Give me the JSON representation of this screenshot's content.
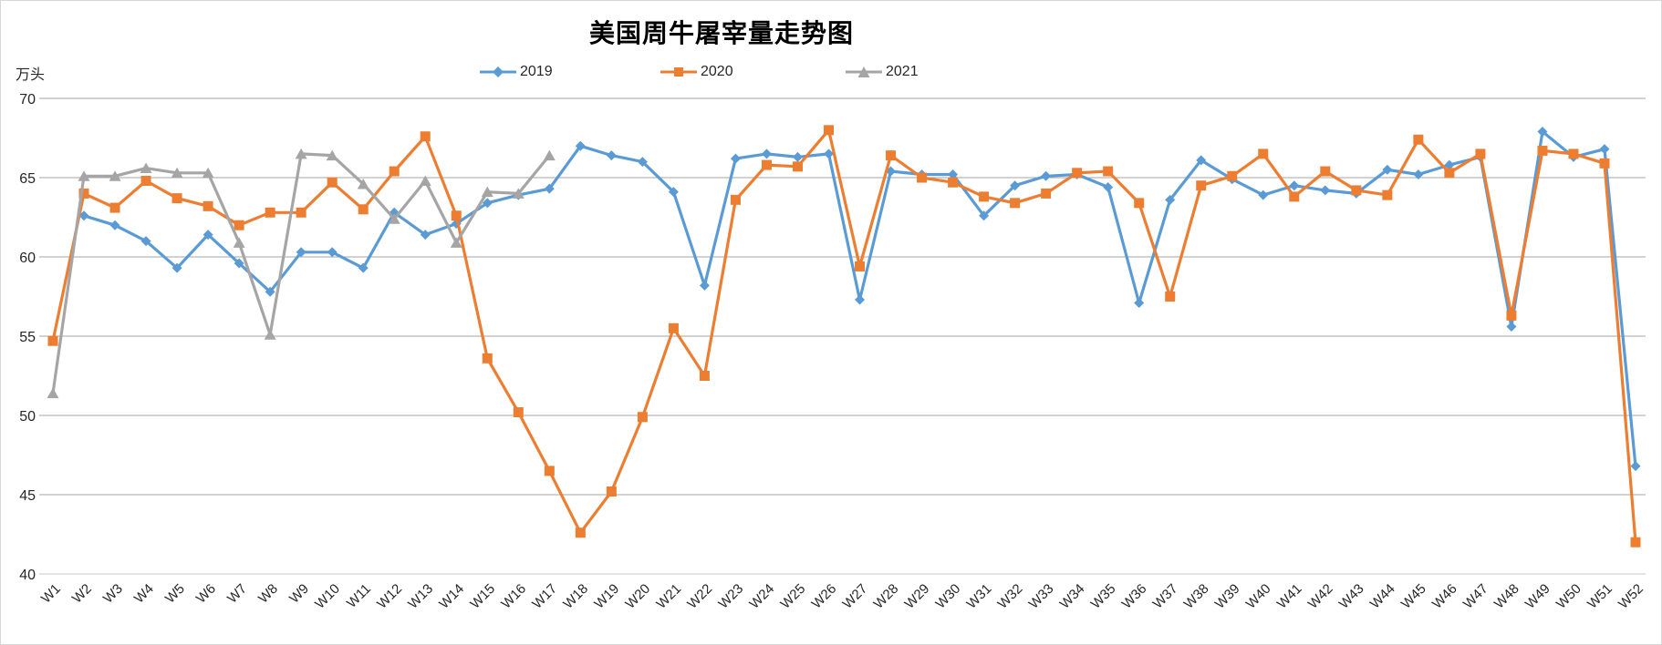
{
  "title": "美国周牛屠宰量走势图",
  "y_axis_unit_label": "万头",
  "colors": {
    "series_2019": "#5B9BD5",
    "series_2020": "#ED7D31",
    "series_2021": "#A5A5A5",
    "gridline": "#a6a6a6",
    "baseline": "#c9c9c9"
  },
  "legend": {
    "items": [
      {
        "label": "2019",
        "marker": "diamond",
        "color": "#5B9BD5"
      },
      {
        "label": "2020",
        "marker": "square",
        "color": "#ED7D31"
      },
      {
        "label": "2021",
        "marker": "triangle",
        "color": "#A5A5A5"
      }
    ]
  },
  "chart_data": {
    "type": "line",
    "title": "美国周牛屠宰量走势图",
    "ylabel": "万头",
    "ylim": [
      40,
      70
    ],
    "yticks": [
      70,
      65,
      60,
      55,
      50,
      45,
      40
    ],
    "grid": true,
    "legend_position": "top-center",
    "categories": [
      "W1",
      "W2",
      "W3",
      "W4",
      "W5",
      "W6",
      "W7",
      "W8",
      "W9",
      "W10",
      "W11",
      "W12",
      "W13",
      "W14",
      "W15",
      "W16",
      "W17",
      "W18",
      "W19",
      "W20",
      "W21",
      "W22",
      "W23",
      "W24",
      "W25",
      "W26",
      "W27",
      "W28",
      "W29",
      "W30",
      "W31",
      "W32",
      "W33",
      "W34",
      "W35",
      "W36",
      "W37",
      "W38",
      "W39",
      "W40",
      "W41",
      "W42",
      "W43",
      "W44",
      "W45",
      "W46",
      "W47",
      "W48",
      "W49",
      "W50",
      "W51",
      "W52"
    ],
    "series": [
      {
        "name": "2019",
        "color": "#5B9BD5",
        "marker": "diamond",
        "values": [
          null,
          62.6,
          62.0,
          61.0,
          59.3,
          61.4,
          59.6,
          57.8,
          60.3,
          60.3,
          59.3,
          62.8,
          61.4,
          62.1,
          63.4,
          63.9,
          64.3,
          67.0,
          66.4,
          66.0,
          64.1,
          58.2,
          66.2,
          66.5,
          66.3,
          66.5,
          57.3,
          65.4,
          65.2,
          65.2,
          62.6,
          64.5,
          65.1,
          65.2,
          64.4,
          57.1,
          63.6,
          66.1,
          64.9,
          63.9,
          64.5,
          64.2,
          64.0,
          65.5,
          65.2,
          65.8,
          66.3,
          55.6,
          67.9,
          66.3,
          66.8,
          46.8
        ]
      },
      {
        "name": "2020",
        "color": "#ED7D31",
        "marker": "square",
        "values": [
          54.7,
          64.0,
          63.1,
          64.8,
          63.7,
          63.2,
          62.0,
          62.8,
          62.8,
          64.7,
          63.0,
          65.4,
          67.6,
          62.6,
          53.6,
          50.2,
          46.5,
          42.6,
          45.2,
          49.9,
          55.5,
          52.5,
          63.6,
          65.8,
          65.7,
          68.0,
          59.4,
          66.4,
          65.0,
          64.7,
          63.8,
          63.4,
          64.0,
          65.3,
          65.4,
          63.4,
          57.5,
          64.5,
          65.1,
          66.5,
          63.8,
          65.4,
          64.2,
          63.9,
          67.4,
          65.3,
          66.5,
          56.3,
          66.7,
          66.5,
          65.9,
          42.0
        ]
      },
      {
        "name": "2021",
        "color": "#A5A5A5",
        "marker": "triangle",
        "values": [
          51.4,
          65.1,
          65.1,
          65.6,
          65.3,
          65.3,
          60.9,
          55.1,
          66.5,
          66.4,
          64.6,
          62.4,
          64.8,
          60.9,
          64.1,
          64.0,
          66.4,
          null,
          null,
          null,
          null,
          null,
          null,
          null,
          null,
          null,
          null,
          null,
          null,
          null,
          null,
          null,
          null,
          null,
          null,
          null,
          null,
          null,
          null,
          null,
          null,
          null,
          null,
          null,
          null,
          null,
          null,
          null,
          null,
          null,
          null,
          null
        ]
      }
    ]
  }
}
